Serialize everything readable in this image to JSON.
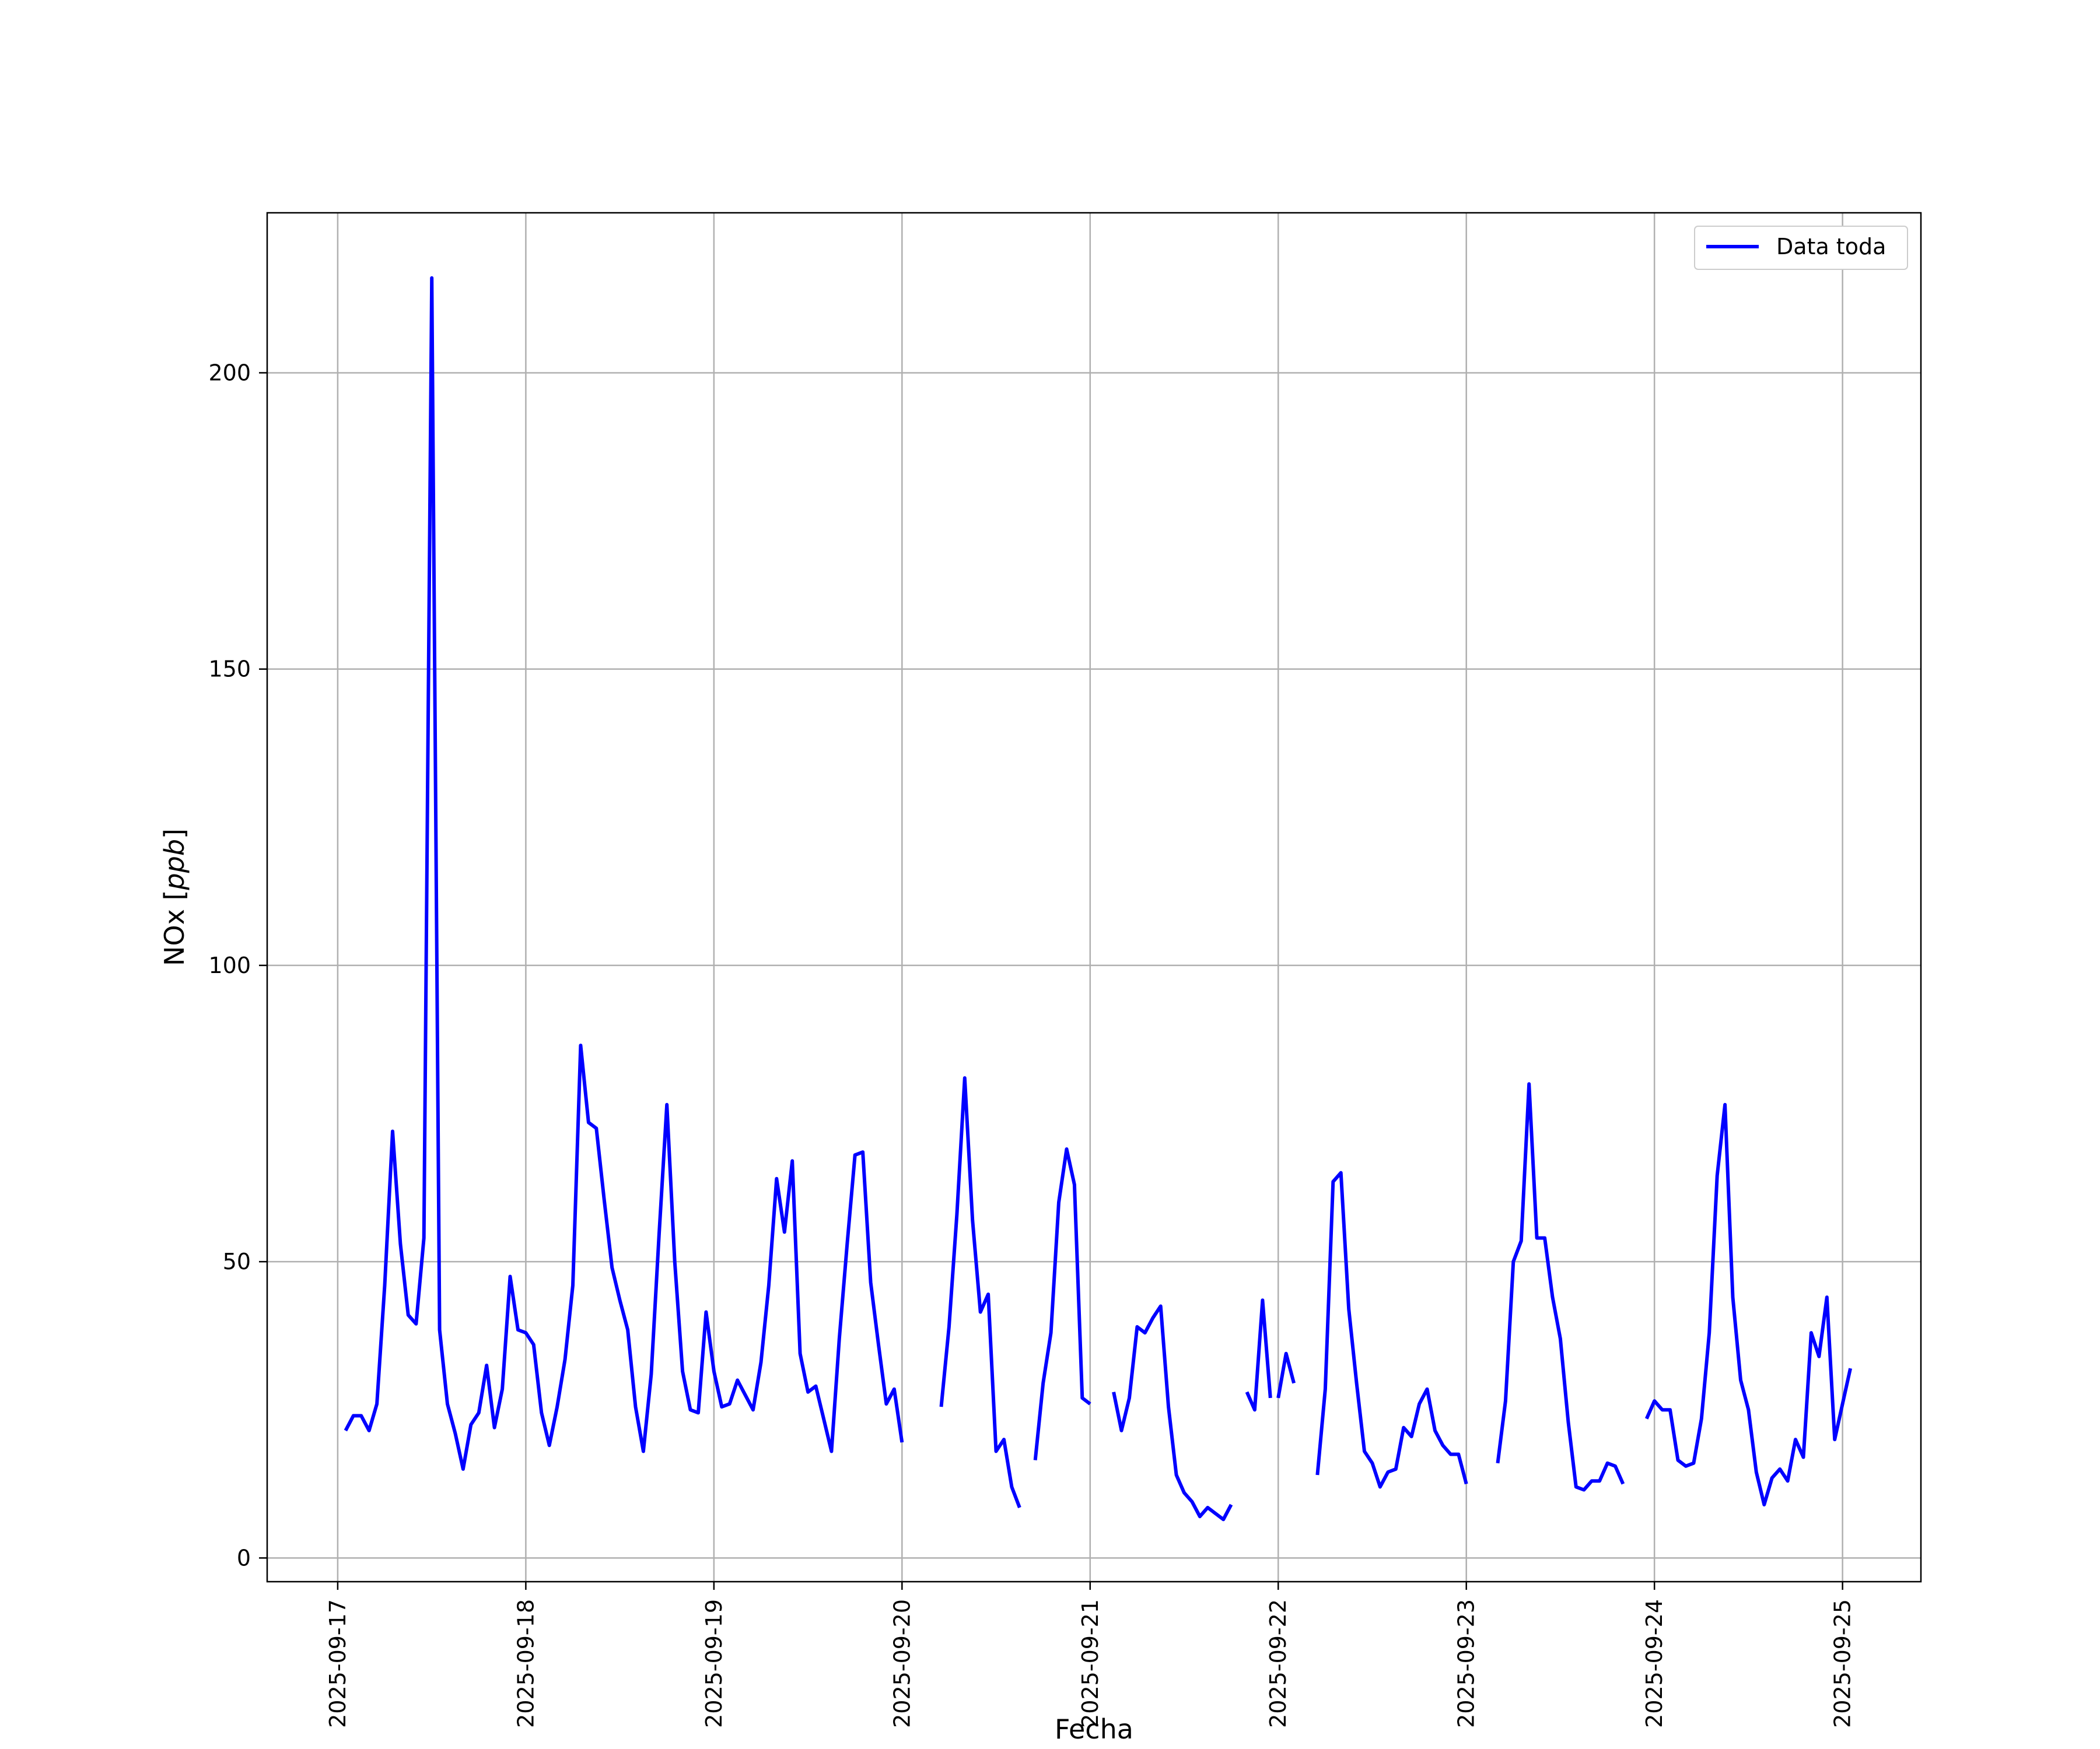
{
  "chart_data": {
    "type": "line",
    "xlabel": "Fecha",
    "ylabel": "NOx [ppb]",
    "ylabel_main": "NOx ",
    "ylabel_unit": "ppb",
    "x_tick_labels": [
      "2025-09-17",
      "2025-09-18",
      "2025-09-19",
      "2025-09-20",
      "2025-09-21",
      "2025-09-22",
      "2025-09-23",
      "2025-09-24",
      "2025-09-25"
    ],
    "y_ticks": [
      0,
      50,
      100,
      150,
      200
    ],
    "xlim": [
      "2025-09-16 15:00",
      "2025-09-25 10:00"
    ],
    "ylim": [
      -4,
      227
    ],
    "grid": true,
    "legend_position": "top-right",
    "series": [
      {
        "name": "Data toda",
        "color": "#0000ff",
        "segments": [
          [
            [
              "2025-09-17 01:00",
              21.5
            ],
            [
              "2025-09-17 02:00",
              24
            ],
            [
              "2025-09-17 03:00",
              24
            ],
            [
              "2025-09-17 04:00",
              21.5
            ],
            [
              "2025-09-17 05:00",
              26
            ],
            [
              "2025-09-17 06:00",
              46
            ],
            [
              "2025-09-17 07:00",
              72
            ],
            [
              "2025-09-17 08:00",
              53
            ],
            [
              "2025-09-17 09:00",
              41
            ],
            [
              "2025-09-17 10:00",
              39.5
            ],
            [
              "2025-09-17 11:00",
              54
            ],
            [
              "2025-09-17 12:00",
              216
            ],
            [
              "2025-09-17 13:00",
              38.5
            ],
            [
              "2025-09-17 14:00",
              26
            ],
            [
              "2025-09-17 15:00",
              21
            ],
            [
              "2025-09-17 16:00",
              15
            ],
            [
              "2025-09-17 17:00",
              22.5
            ],
            [
              "2025-09-17 18:00",
              24.5
            ],
            [
              "2025-09-17 19:00",
              32.5
            ],
            [
              "2025-09-17 20:00",
              22
            ],
            [
              "2025-09-17 21:00",
              28.5
            ],
            [
              "2025-09-17 22:00",
              47.5
            ],
            [
              "2025-09-17 23:00",
              38.5
            ],
            [
              "2025-09-18 00:00",
              38
            ],
            [
              "2025-09-18 01:00",
              36
            ],
            [
              "2025-09-18 02:00",
              24.5
            ],
            [
              "2025-09-18 03:00",
              19
            ],
            [
              "2025-09-18 04:00",
              25.5
            ],
            [
              "2025-09-18 05:00",
              33.5
            ],
            [
              "2025-09-18 06:00",
              46
            ],
            [
              "2025-09-18 07:00",
              86.5
            ],
            [
              "2025-09-18 08:00",
              73.5
            ],
            [
              "2025-09-18 09:00",
              72.5
            ],
            [
              "2025-09-18 10:00",
              60.5
            ],
            [
              "2025-09-18 11:00",
              49
            ],
            [
              "2025-09-18 12:00",
              43.5
            ],
            [
              "2025-09-18 13:00",
              38.5
            ],
            [
              "2025-09-18 14:00",
              25.5
            ],
            [
              "2025-09-18 15:00",
              18
            ],
            [
              "2025-09-18 16:00",
              31
            ],
            [
              "2025-09-18 17:00",
              54.5
            ],
            [
              "2025-09-18 18:00",
              76.5
            ],
            [
              "2025-09-18 19:00",
              50
            ],
            [
              "2025-09-18 20:00",
              31.5
            ],
            [
              "2025-09-18 21:00",
              25
            ],
            [
              "2025-09-18 22:00",
              24.5
            ],
            [
              "2025-09-18 23:00",
              41.5
            ],
            [
              "2025-09-19 00:00",
              31.5
            ],
            [
              "2025-09-19 01:00",
              25.5
            ],
            [
              "2025-09-19 02:00",
              26
            ],
            [
              "2025-09-19 03:00",
              30
            ],
            [
              "2025-09-19 04:00",
              27.5
            ],
            [
              "2025-09-19 05:00",
              25
            ],
            [
              "2025-09-19 06:00",
              33
            ],
            [
              "2025-09-19 07:00",
              46
            ],
            [
              "2025-09-19 08:00",
              64
            ],
            [
              "2025-09-19 09:00",
              55
            ],
            [
              "2025-09-19 10:00",
              67
            ],
            [
              "2025-09-19 11:00",
              34.5
            ],
            [
              "2025-09-19 12:00",
              28
            ],
            [
              "2025-09-19 13:00",
              29
            ],
            [
              "2025-09-19 14:00",
              23.5
            ],
            [
              "2025-09-19 15:00",
              18
            ],
            [
              "2025-09-19 16:00",
              37
            ],
            [
              "2025-09-19 17:00",
              53
            ],
            [
              "2025-09-19 18:00",
              68
            ],
            [
              "2025-09-19 19:00",
              68.5
            ],
            [
              "2025-09-19 20:00",
              46.5
            ],
            [
              "2025-09-19 21:00",
              36
            ],
            [
              "2025-09-19 22:00",
              26
            ],
            [
              "2025-09-19 23:00",
              28.5
            ],
            [
              "2025-09-20 00:00",
              19.5
            ]
          ],
          [
            [
              "2025-09-20 05:00",
              25.5
            ],
            [
              "2025-09-20 06:00",
              39
            ],
            [
              "2025-09-20 07:00",
              58
            ],
            [
              "2025-09-20 08:00",
              81
            ],
            [
              "2025-09-20 09:00",
              57
            ],
            [
              "2025-09-20 10:00",
              41.5
            ],
            [
              "2025-09-20 11:00",
              44.5
            ],
            [
              "2025-09-20 12:00",
              18
            ],
            [
              "2025-09-20 13:00",
              20
            ],
            [
              "2025-09-20 14:00",
              12
            ],
            [
              "2025-09-20 15:00",
              8.5
            ]
          ],
          [
            [
              "2025-09-20 17:00",
              16.5
            ],
            [
              "2025-09-20 18:00",
              29.5
            ],
            [
              "2025-09-20 19:00",
              38
            ],
            [
              "2025-09-20 20:00",
              60
            ],
            [
              "2025-09-20 21:00",
              69
            ],
            [
              "2025-09-20 22:00",
              63
            ],
            [
              "2025-09-20 23:00",
              27
            ],
            [
              "2025-09-21 00:00",
              26
            ]
          ],
          [
            [
              "2025-09-21 03:00",
              28
            ],
            [
              "2025-09-21 04:00",
              21.5
            ],
            [
              "2025-09-21 05:00",
              27
            ],
            [
              "2025-09-21 06:00",
              39
            ],
            [
              "2025-09-21 07:00",
              38
            ],
            [
              "2025-09-21 08:00",
              40.5
            ],
            [
              "2025-09-21 09:00",
              42.5
            ],
            [
              "2025-09-21 10:00",
              25.5
            ],
            [
              "2025-09-21 11:00",
              14
            ],
            [
              "2025-09-21 12:00",
              11
            ],
            [
              "2025-09-21 13:00",
              9.5
            ],
            [
              "2025-09-21 14:00",
              7
            ],
            [
              "2025-09-21 15:00",
              8.5
            ],
            [
              "2025-09-21 16:00",
              7.5
            ],
            [
              "2025-09-21 17:00",
              6.5
            ],
            [
              "2025-09-21 18:00",
              9
            ]
          ],
          [
            [
              "2025-09-21 20:00",
              28
            ],
            [
              "2025-09-21 21:00",
              25
            ],
            [
              "2025-09-21 22:00",
              43.5
            ],
            [
              "2025-09-21 23:00",
              27
            ]
          ],
          [
            [
              "2025-09-22 00:00",
              27
            ],
            [
              "2025-09-22 01:00",
              34.5
            ],
            [
              "2025-09-22 02:00",
              29.5
            ]
          ],
          [
            [
              "2025-09-22 05:00",
              14
            ],
            [
              "2025-09-22 06:00",
              28.5
            ],
            [
              "2025-09-22 07:00",
              63.5
            ],
            [
              "2025-09-22 08:00",
              65
            ],
            [
              "2025-09-22 09:00",
              42
            ],
            [
              "2025-09-22 10:00",
              29.5
            ],
            [
              "2025-09-22 11:00",
              18
            ],
            [
              "2025-09-22 12:00",
              16
            ],
            [
              "2025-09-22 13:00",
              12
            ],
            [
              "2025-09-22 14:00",
              14.5
            ],
            [
              "2025-09-22 15:00",
              15
            ],
            [
              "2025-09-22 16:00",
              22
            ],
            [
              "2025-09-22 17:00",
              20.5
            ],
            [
              "2025-09-22 18:00",
              26
            ],
            [
              "2025-09-22 19:00",
              28.5
            ],
            [
              "2025-09-22 20:00",
              21.5
            ],
            [
              "2025-09-22 21:00",
              19
            ],
            [
              "2025-09-22 22:00",
              17.5
            ],
            [
              "2025-09-22 23:00",
              17.5
            ],
            [
              "2025-09-23 00:00",
              12.5
            ]
          ],
          [
            [
              "2025-09-23 04:00",
              16
            ],
            [
              "2025-09-23 05:00",
              26.5
            ],
            [
              "2025-09-23 06:00",
              50
            ],
            [
              "2025-09-23 07:00",
              53.5
            ],
            [
              "2025-09-23 08:00",
              80
            ],
            [
              "2025-09-23 09:00",
              54
            ],
            [
              "2025-09-23 10:00",
              54
            ],
            [
              "2025-09-23 11:00",
              44
            ],
            [
              "2025-09-23 12:00",
              37
            ],
            [
              "2025-09-23 13:00",
              23
            ],
            [
              "2025-09-23 14:00",
              12
            ],
            [
              "2025-09-23 15:00",
              11.5
            ],
            [
              "2025-09-23 16:00",
              13
            ],
            [
              "2025-09-23 17:00",
              13
            ],
            [
              "2025-09-23 18:00",
              16
            ],
            [
              "2025-09-23 19:00",
              15.5
            ],
            [
              "2025-09-23 20:00",
              12.5
            ]
          ],
          [
            [
              "2025-09-23 23:00",
              23.5
            ],
            [
              "2025-09-24 00:00",
              26.5
            ],
            [
              "2025-09-24 01:00",
              25
            ],
            [
              "2025-09-24 02:00",
              25
            ],
            [
              "2025-09-24 03:00",
              16.5
            ],
            [
              "2025-09-24 04:00",
              15.5
            ],
            [
              "2025-09-24 05:00",
              16
            ],
            [
              "2025-09-24 06:00",
              23.5
            ],
            [
              "2025-09-24 07:00",
              38
            ],
            [
              "2025-09-24 08:00",
              64.5
            ],
            [
              "2025-09-24 09:00",
              76.5
            ],
            [
              "2025-09-24 10:00",
              44
            ],
            [
              "2025-09-24 11:00",
              30
            ],
            [
              "2025-09-24 12:00",
              25
            ],
            [
              "2025-09-24 13:00",
              14.5
            ],
            [
              "2025-09-24 14:00",
              9
            ],
            [
              "2025-09-24 15:00",
              13.5
            ],
            [
              "2025-09-24 16:00",
              15
            ],
            [
              "2025-09-24 17:00",
              13
            ],
            [
              "2025-09-24 18:00",
              20
            ],
            [
              "2025-09-24 19:00",
              17
            ],
            [
              "2025-09-24 20:00",
              38
            ],
            [
              "2025-09-24 21:00",
              34
            ],
            [
              "2025-09-24 22:00",
              44
            ],
            [
              "2025-09-24 23:00",
              20
            ],
            [
              "2025-09-25 00:00",
              26
            ],
            [
              "2025-09-25 01:00",
              32
            ]
          ]
        ]
      }
    ]
  }
}
